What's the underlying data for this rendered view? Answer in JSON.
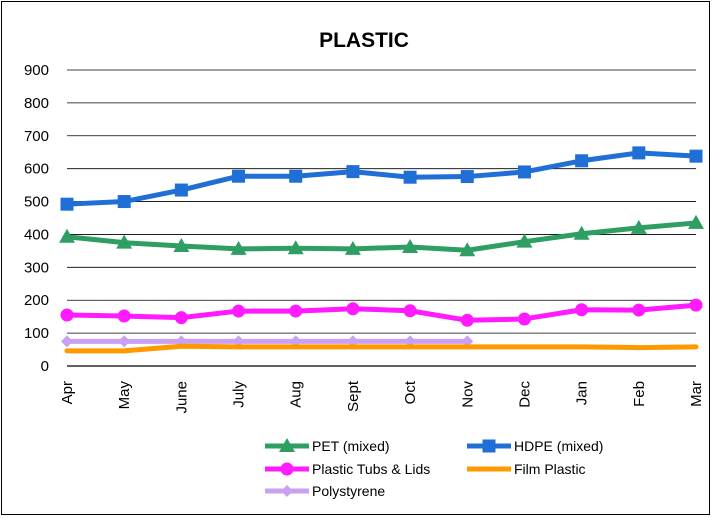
{
  "chart_data": {
    "type": "line",
    "title": "PLASTIC",
    "xlabel": "",
    "ylabel": "",
    "categories": [
      "Apr",
      "May",
      "June",
      "July",
      "Aug",
      "Sept",
      "Oct",
      "Nov",
      "Dec",
      "Jan",
      "Feb",
      "Mar"
    ],
    "yticks": [
      "0",
      "100",
      "200",
      "300",
      "400",
      "500",
      "600",
      "700",
      "800",
      "900"
    ],
    "ylim": [
      0,
      900
    ],
    "grid": true,
    "legend_position": "bottom",
    "series": [
      {
        "name": "PET (mixed)",
        "color": "#2e9e62",
        "marker": "triangle",
        "values": [
          393,
          375,
          365,
          356,
          358,
          356,
          362,
          352,
          378,
          402,
          420,
          435
        ]
      },
      {
        "name": "HDPE (mixed)",
        "color": "#1f6fd6",
        "marker": "square",
        "values": [
          492,
          500,
          535,
          577,
          577,
          591,
          574,
          576,
          590,
          624,
          648,
          638
        ]
      },
      {
        "name": "Plastic Tubs & Lids",
        "color": "#ff1aff",
        "marker": "circle",
        "values": [
          155,
          152,
          147,
          167,
          167,
          174,
          168,
          139,
          143,
          171,
          170,
          185
        ]
      },
      {
        "name": "Film Plastic",
        "color": "#ff9900",
        "marker": "none",
        "values": [
          46,
          46,
          60,
          58,
          58,
          58,
          58,
          58,
          58,
          58,
          56,
          58
        ]
      },
      {
        "name": "Polystyrene",
        "color": "#c9a0f2",
        "marker": "diamond",
        "values": [
          75,
          75,
          75,
          75,
          75,
          75,
          75,
          75,
          null,
          null,
          null,
          null
        ]
      }
    ]
  }
}
